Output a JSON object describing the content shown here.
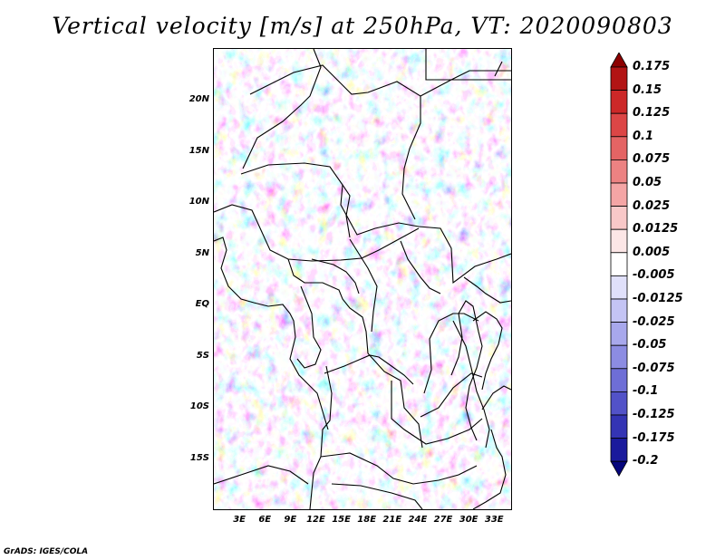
{
  "title": "Vertical velocity [m/s] at 250hPa, VT: 2020090803",
  "credit": "GrADS: IGES/COLA",
  "map": {
    "projection": "lat-lon",
    "variable": "Vertical velocity at 250hPa",
    "units": "m/s",
    "lon_range": [
      0,
      35
    ],
    "lat_range": [
      -20,
      25
    ],
    "lat_ticks": [
      {
        "value": 20,
        "label": "20N"
      },
      {
        "value": 15,
        "label": "15N"
      },
      {
        "value": 10,
        "label": "10N"
      },
      {
        "value": 5,
        "label": "5N"
      },
      {
        "value": 0,
        "label": "EQ"
      },
      {
        "value": -5,
        "label": "5S"
      },
      {
        "value": -10,
        "label": "10S"
      },
      {
        "value": -15,
        "label": "15S"
      }
    ],
    "lon_ticks": [
      {
        "value": 3,
        "label": "3E"
      },
      {
        "value": 6,
        "label": "6E"
      },
      {
        "value": 9,
        "label": "9E"
      },
      {
        "value": 12,
        "label": "12E"
      },
      {
        "value": 15,
        "label": "15E"
      },
      {
        "value": 18,
        "label": "18E"
      },
      {
        "value": 21,
        "label": "21E"
      },
      {
        "value": 24,
        "label": "24E"
      },
      {
        "value": 27,
        "label": "27E"
      },
      {
        "value": 30,
        "label": "30E"
      },
      {
        "value": 33,
        "label": "33E"
      }
    ]
  },
  "colorbar": {
    "labels": [
      "0.175",
      "0.15",
      "0.125",
      "0.1",
      "0.075",
      "0.05",
      "0.025",
      "0.0125",
      "0.005",
      "-0.005",
      "-0.0125",
      "-0.025",
      "-0.05",
      "-0.075",
      "-0.1",
      "-0.125",
      "-0.175",
      "-0.2"
    ],
    "colors": [
      "#8c0000",
      "#b21414",
      "#cc2828",
      "#dc4646",
      "#e46464",
      "#ec8282",
      "#f4a5a5",
      "#f8c8c8",
      "#fce6e6",
      "#ffffff",
      "#e0e0fa",
      "#c4c4f4",
      "#a8a8ec",
      "#8c8ce2",
      "#6e6ed6",
      "#5252c8",
      "#3434b4",
      "#1a1a9c",
      "#06067c"
    ]
  }
}
